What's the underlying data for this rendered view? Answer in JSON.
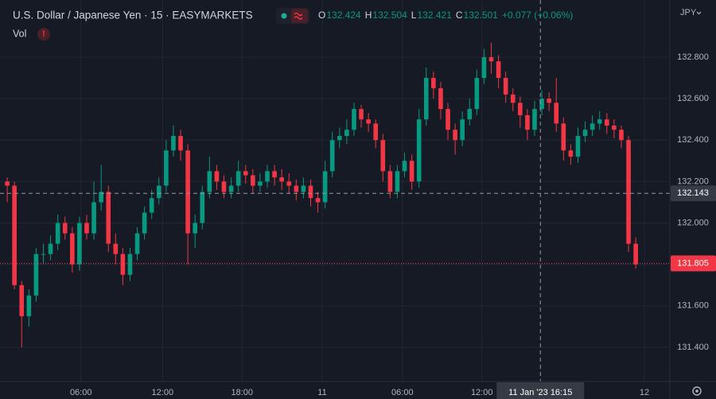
{
  "chart_data": {
    "type": "candlestick",
    "title": "U.S. Dollar / Japanese Yen · 15 · EASYMARKETS",
    "ohlc_legend": [
      {
        "label": "O",
        "value": "132.424"
      },
      {
        "label": "H",
        "value": "132.504"
      },
      {
        "label": "L",
        "value": "132.421"
      },
      {
        "label": "C",
        "value": "132.501"
      }
    ],
    "change": "+0.077 (+0.06%)",
    "volume_label": "Vol",
    "currency": "JPY",
    "up_color": "#089981",
    "down_color": "#f23645",
    "grid": true,
    "xlim": [
      -1,
      91.5
    ],
    "ylim": [
      131.235,
      133.076
    ],
    "xticks": [
      {
        "value": 10.2,
        "label": "06:00"
      },
      {
        "value": 21.5,
        "label": "12:00"
      },
      {
        "value": 32.5,
        "label": "18:00"
      },
      {
        "value": 43.6,
        "label": "11"
      },
      {
        "value": 54.7,
        "label": "06:00"
      },
      {
        "value": 65.7,
        "label": "12:00"
      },
      {
        "value": 88.2,
        "label": "12"
      }
    ],
    "yticks": [
      {
        "value": 131.4,
        "label": "131.400"
      },
      {
        "value": 131.6,
        "label": "131.600"
      },
      {
        "value": 131.8,
        "label": "131.800"
      },
      {
        "value": 132.0,
        "label": "132.000"
      },
      {
        "value": 132.2,
        "label": "132.200"
      },
      {
        "value": 132.4,
        "label": "132.400"
      },
      {
        "value": 132.6,
        "label": "132.600"
      },
      {
        "value": 132.8,
        "label": "132.800"
      }
    ],
    "crosshair": {
      "x": {
        "value": 73.8,
        "label": "11 Jan '23   16:15"
      },
      "y": {
        "value": 132.143,
        "label": "132.143"
      }
    },
    "last_price": {
      "value": 131.805,
      "label": "131.805"
    },
    "candles": [
      [
        132.2,
        132.22,
        132.1,
        132.18
      ],
      [
        132.18,
        132.2,
        131.68,
        131.7
      ],
      [
        131.7,
        131.72,
        131.4,
        131.55
      ],
      [
        131.55,
        131.68,
        131.5,
        131.65
      ],
      [
        131.65,
        131.88,
        131.62,
        131.85
      ],
      [
        131.85,
        131.9,
        131.8,
        131.85
      ],
      [
        131.85,
        131.94,
        131.82,
        131.9
      ],
      [
        131.9,
        132.04,
        131.87,
        132.0
      ],
      [
        132.0,
        132.03,
        131.92,
        131.95
      ],
      [
        131.95,
        131.98,
        131.76,
        131.8
      ],
      [
        131.8,
        132.03,
        131.77,
        132.0
      ],
      [
        132.0,
        132.04,
        131.92,
        131.95
      ],
      [
        131.95,
        132.2,
        131.92,
        132.1
      ],
      [
        132.1,
        132.28,
        132.06,
        132.15
      ],
      [
        132.15,
        132.18,
        131.86,
        131.9
      ],
      [
        131.9,
        131.95,
        131.8,
        131.85
      ],
      [
        131.85,
        131.88,
        131.7,
        131.75
      ],
      [
        131.75,
        131.88,
        131.72,
        131.85
      ],
      [
        131.85,
        131.98,
        131.82,
        131.95
      ],
      [
        131.95,
        132.08,
        131.92,
        132.05
      ],
      [
        132.05,
        132.16,
        132.02,
        132.12
      ],
      [
        132.12,
        132.22,
        132.09,
        132.18
      ],
      [
        132.18,
        132.4,
        132.15,
        132.35
      ],
      [
        132.35,
        132.47,
        132.32,
        132.42
      ],
      [
        132.42,
        132.45,
        132.3,
        132.35
      ],
      [
        132.35,
        132.38,
        131.8,
        131.95
      ],
      [
        131.95,
        132.04,
        131.88,
        132.0
      ],
      [
        132.0,
        132.18,
        131.97,
        132.15
      ],
      [
        132.15,
        132.32,
        132.12,
        132.25
      ],
      [
        132.25,
        132.28,
        132.16,
        132.2
      ],
      [
        132.2,
        132.23,
        132.12,
        132.15
      ],
      [
        132.15,
        132.22,
        132.12,
        132.18
      ],
      [
        132.18,
        132.3,
        132.15,
        132.25
      ],
      [
        132.25,
        132.28,
        132.19,
        132.23
      ],
      [
        132.23,
        132.26,
        132.14,
        132.18
      ],
      [
        132.18,
        132.24,
        132.15,
        132.2
      ],
      [
        132.2,
        132.28,
        132.17,
        132.25
      ],
      [
        132.25,
        132.28,
        132.18,
        132.22
      ],
      [
        132.22,
        132.26,
        132.16,
        132.2
      ],
      [
        132.2,
        132.24,
        132.14,
        132.18
      ],
      [
        132.18,
        132.21,
        132.11,
        132.15
      ],
      [
        132.15,
        132.22,
        132.12,
        132.18
      ],
      [
        132.18,
        132.21,
        132.08,
        132.12
      ],
      [
        132.12,
        132.15,
        132.05,
        132.1
      ],
      [
        132.1,
        132.3,
        132.07,
        132.25
      ],
      [
        132.25,
        132.44,
        132.22,
        132.4
      ],
      [
        132.4,
        132.46,
        132.36,
        132.42
      ],
      [
        132.42,
        132.5,
        132.38,
        132.45
      ],
      [
        132.45,
        132.58,
        132.42,
        132.55
      ],
      [
        132.55,
        132.57,
        132.46,
        132.5
      ],
      [
        132.5,
        132.53,
        132.44,
        132.48
      ],
      [
        132.48,
        132.5,
        132.36,
        132.4
      ],
      [
        132.4,
        132.43,
        132.2,
        132.25
      ],
      [
        132.25,
        132.28,
        132.12,
        132.15
      ],
      [
        132.15,
        132.28,
        132.12,
        132.25
      ],
      [
        132.25,
        132.34,
        132.22,
        132.3
      ],
      [
        132.3,
        132.33,
        132.16,
        132.2
      ],
      [
        132.2,
        132.55,
        132.17,
        132.5
      ],
      [
        132.5,
        132.75,
        132.47,
        132.7
      ],
      [
        132.7,
        132.73,
        132.6,
        132.65
      ],
      [
        132.65,
        132.68,
        132.5,
        132.55
      ],
      [
        132.55,
        132.58,
        132.4,
        132.45
      ],
      [
        132.45,
        132.48,
        132.33,
        132.4
      ],
      [
        132.4,
        132.54,
        132.37,
        132.5
      ],
      [
        132.5,
        132.6,
        132.47,
        132.55
      ],
      [
        132.55,
        132.74,
        132.52,
        132.7
      ],
      [
        132.7,
        132.84,
        132.67,
        132.8
      ],
      [
        132.8,
        132.87,
        132.72,
        132.78
      ],
      [
        132.78,
        132.81,
        132.65,
        132.7
      ],
      [
        132.7,
        132.73,
        132.58,
        132.62
      ],
      [
        132.62,
        132.65,
        132.54,
        132.58
      ],
      [
        132.58,
        132.61,
        132.46,
        132.52
      ],
      [
        132.52,
        132.55,
        132.4,
        132.45
      ],
      [
        132.45,
        132.59,
        132.42,
        132.55
      ],
      [
        132.55,
        132.64,
        132.52,
        132.6
      ],
      [
        132.6,
        132.63,
        132.54,
        132.58
      ],
      [
        132.58,
        132.7,
        132.44,
        132.48
      ],
      [
        132.48,
        132.51,
        132.3,
        132.35
      ],
      [
        132.35,
        132.38,
        132.28,
        132.32
      ],
      [
        132.32,
        132.46,
        132.29,
        132.42
      ],
      [
        132.42,
        132.49,
        132.39,
        132.45
      ],
      [
        132.45,
        132.52,
        132.42,
        132.48
      ],
      [
        132.48,
        132.54,
        132.45,
        132.5
      ],
      [
        132.5,
        132.53,
        132.43,
        132.47
      ],
      [
        132.47,
        132.5,
        132.41,
        132.45
      ],
      [
        132.45,
        132.47,
        132.36,
        132.4
      ],
      [
        132.4,
        132.42,
        131.86,
        131.9
      ],
      [
        131.9,
        131.93,
        131.78,
        131.8
      ]
    ]
  }
}
